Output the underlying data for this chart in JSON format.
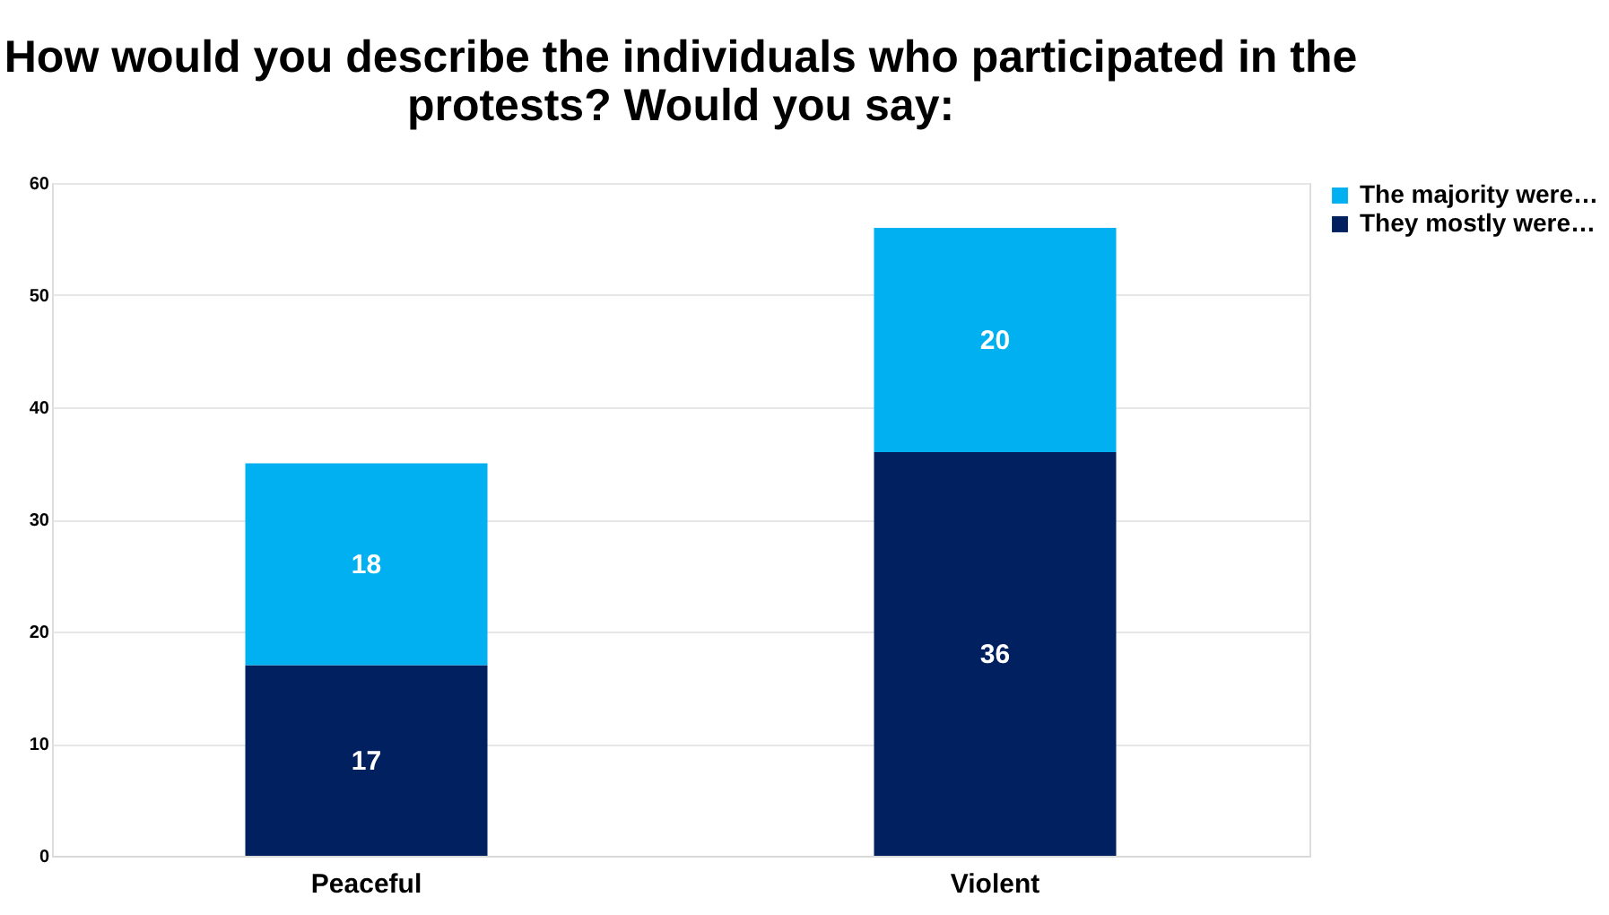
{
  "chart_data": {
    "type": "bar",
    "title": "How would you describe the individuals who participated in the protests? Would you say:",
    "categories": [
      "Peaceful",
      "Violent"
    ],
    "stacked": true,
    "series": [
      {
        "name": "They mostly were…",
        "color": "#002060",
        "values": [
          17,
          36
        ]
      },
      {
        "name": "The majority were…",
        "color": "#00b0f0",
        "values": [
          18,
          20
        ]
      }
    ],
    "ylim": [
      0,
      60
    ],
    "yticks": [
      0,
      10,
      20,
      30,
      40,
      50,
      60
    ],
    "grid": "y",
    "legend": "top right",
    "data_labels": true
  }
}
